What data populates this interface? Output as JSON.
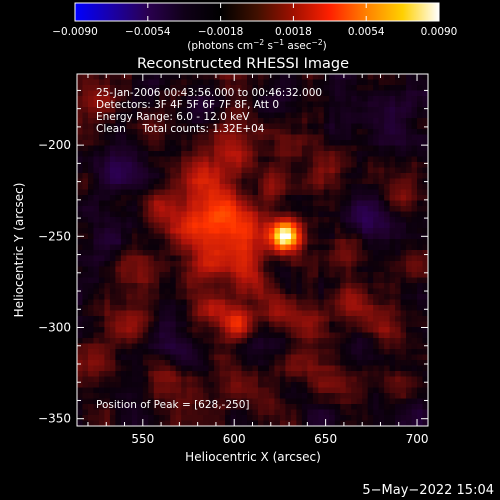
{
  "colorbar": {
    "ticks": [
      {
        "value": -0.009,
        "label": "−0.0090"
      },
      {
        "value": -0.0054,
        "label": "−0.0054"
      },
      {
        "value": -0.0018,
        "label": "−0.0018"
      },
      {
        "value": 0.0018,
        "label": "0.0018"
      },
      {
        "value": 0.0054,
        "label": "0.0054"
      },
      {
        "value": 0.009,
        "label": "0.0090"
      }
    ],
    "range": [
      -0.009,
      0.009
    ],
    "unit_prefix": "(photons cm",
    "unit_exp1": "−2",
    "unit_mid1": " s",
    "unit_exp2": "−1",
    "unit_mid2": " asec",
    "unit_exp3": "−2",
    "unit_suffix": ")",
    "colors": [
      "#0000ff",
      "#1a00a8",
      "#2a0050",
      "#100018",
      "#000000",
      "#401000",
      "#a01000",
      "#ff2000",
      "#ff8000",
      "#ffd000",
      "#ffffff"
    ]
  },
  "chart_data": {
    "type": "heatmap",
    "title": "Reconstructed RHESSI Image",
    "xlabel": "Heliocentric X (arcsec)",
    "ylabel": "Heliocentric Y (arcsec)",
    "xlim": [
      514,
      706
    ],
    "ylim": [
      -354,
      -161
    ],
    "x_ticks": [
      {
        "value": 550,
        "label": "550"
      },
      {
        "value": 600,
        "label": "600"
      },
      {
        "value": 650,
        "label": "650"
      },
      {
        "value": 700,
        "label": "700"
      }
    ],
    "y_ticks": [
      {
        "value": -200,
        "label": "−200"
      },
      {
        "value": -250,
        "label": "−250"
      },
      {
        "value": -300,
        "label": "−300"
      },
      {
        "value": -350,
        "label": "−350"
      }
    ],
    "info_lines": [
      "25-Jan-2006 00:43:56.000 to 00:46:32.000",
      "Detectors: 3F 4F 5F 6F 7F 8F, Att 0",
      "Energy Range: 6.0 - 12.0 keV",
      "Clean     Total counts: 1.32E+04"
    ],
    "peak_label": "Position of Peak = [628,-250]",
    "peak": {
      "x": 628,
      "y": -250
    },
    "sources": [
      {
        "x": 628,
        "y": -250,
        "amp": 1.0,
        "r": 6
      },
      {
        "x": 605,
        "y": -248,
        "amp": 0.42,
        "r": 10
      },
      {
        "x": 590,
        "y": -235,
        "amp": 0.4,
        "r": 10
      },
      {
        "x": 582,
        "y": -216,
        "amp": 0.33,
        "r": 8
      },
      {
        "x": 600,
        "y": -206,
        "amp": 0.3,
        "r": 8
      },
      {
        "x": 588,
        "y": -262,
        "amp": 0.35,
        "r": 9
      },
      {
        "x": 575,
        "y": -245,
        "amp": 0.3,
        "r": 8
      },
      {
        "x": 560,
        "y": -233,
        "amp": 0.22,
        "r": 7
      },
      {
        "x": 610,
        "y": -275,
        "amp": 0.3,
        "r": 8
      },
      {
        "x": 602,
        "y": -298,
        "amp": 0.45,
        "r": 6
      },
      {
        "x": 588,
        "y": -290,
        "amp": 0.3,
        "r": 7
      },
      {
        "x": 625,
        "y": -290,
        "amp": 0.25,
        "r": 7
      },
      {
        "x": 640,
        "y": -300,
        "amp": 0.22,
        "r": 8
      },
      {
        "x": 660,
        "y": -258,
        "amp": 0.22,
        "r": 7
      },
      {
        "x": 665,
        "y": -285,
        "amp": 0.25,
        "r": 8
      },
      {
        "x": 680,
        "y": -300,
        "amp": 0.2,
        "r": 7
      },
      {
        "x": 690,
        "y": -225,
        "amp": 0.18,
        "r": 7
      },
      {
        "x": 700,
        "y": -265,
        "amp": 0.15,
        "r": 6
      },
      {
        "x": 528,
        "y": -176,
        "amp": 0.22,
        "r": 7
      },
      {
        "x": 540,
        "y": -300,
        "amp": 0.22,
        "r": 8
      },
      {
        "x": 525,
        "y": -318,
        "amp": 0.2,
        "r": 7
      },
      {
        "x": 560,
        "y": -330,
        "amp": 0.22,
        "r": 8
      },
      {
        "x": 600,
        "y": -330,
        "amp": 0.18,
        "r": 8
      },
      {
        "x": 620,
        "y": -340,
        "amp": 0.15,
        "r": 7
      },
      {
        "x": 640,
        "y": -320,
        "amp": 0.2,
        "r": 8
      },
      {
        "x": 655,
        "y": -330,
        "amp": 0.15,
        "r": 7
      },
      {
        "x": 690,
        "y": -330,
        "amp": 0.15,
        "r": 7
      },
      {
        "x": 630,
        "y": -200,
        "amp": 0.15,
        "r": 7
      },
      {
        "x": 650,
        "y": -215,
        "amp": 0.13,
        "r": 7
      },
      {
        "x": 555,
        "y": -192,
        "amp": 0.15,
        "r": 7
      },
      {
        "x": 605,
        "y": -180,
        "amp": 0.12,
        "r": 7
      },
      {
        "x": 620,
        "y": -225,
        "amp": 0.2,
        "r": 6
      },
      {
        "x": 545,
        "y": -265,
        "amp": 0.18,
        "r": 7
      },
      {
        "x": 675,
        "y": -240,
        "amp": -0.16,
        "r": 9
      },
      {
        "x": 685,
        "y": -185,
        "amp": -0.16,
        "r": 9
      },
      {
        "x": 540,
        "y": -215,
        "amp": -0.15,
        "r": 8
      },
      {
        "x": 660,
        "y": -190,
        "amp": -0.13,
        "r": 8
      },
      {
        "x": 530,
        "y": -250,
        "amp": -0.12,
        "r": 7
      },
      {
        "x": 570,
        "y": -310,
        "amp": -0.12,
        "r": 7
      },
      {
        "x": 650,
        "y": -350,
        "amp": -0.15,
        "r": 8
      },
      {
        "x": 700,
        "y": -350,
        "amp": -0.15,
        "r": 8
      }
    ]
  },
  "timestamp": "5−May−2022 15:04"
}
